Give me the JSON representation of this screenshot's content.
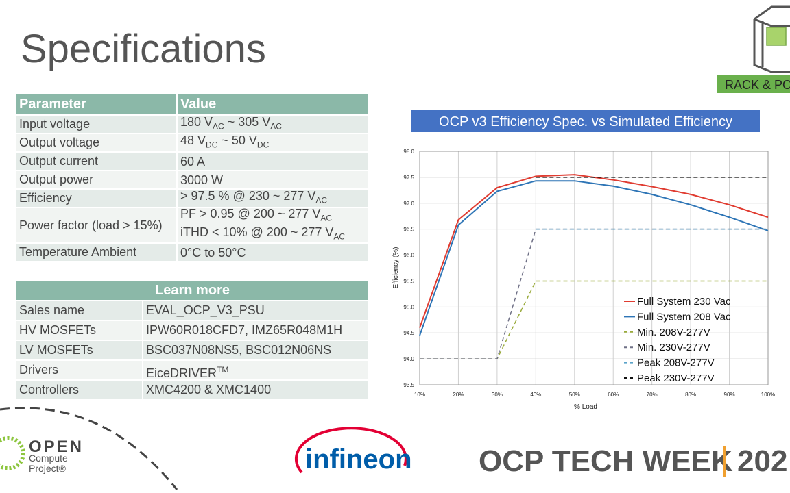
{
  "header": {
    "title": "Specifications",
    "badge": "RACK & PO"
  },
  "spec_table": {
    "columns": [
      "Parameter",
      "Value"
    ],
    "rows": [
      {
        "parameter": "Input voltage",
        "value": [
          [
            "180 V",
            {
              "sub": "AC"
            },
            " ~ 305 V",
            {
              "sub": "AC"
            }
          ]
        ]
      },
      {
        "parameter": "Output voltage",
        "value": [
          [
            "48 V",
            {
              "sub": "DC"
            },
            " ~ 50 V",
            {
              "sub": "DC"
            }
          ]
        ]
      },
      {
        "parameter": "Output current",
        "value": [
          [
            "60 A"
          ]
        ]
      },
      {
        "parameter": "Output power",
        "value": [
          [
            "3000 W"
          ]
        ]
      },
      {
        "parameter": "Efficiency",
        "value": [
          [
            "> 97.5 % @ 230 ~ 277 V",
            {
              "sub": "AC"
            }
          ]
        ]
      },
      {
        "parameter": "Power factor (load > 15%)",
        "value": [
          [
            "PF > 0.95 @ 200 ~ 277 V",
            {
              "sub": "AC"
            }
          ],
          [
            "iTHD < 10% @ 200 ~ 277 V",
            {
              "sub": "AC"
            }
          ]
        ]
      },
      {
        "parameter": "Temperature Ambient",
        "value": [
          [
            "0°C to 50°C"
          ]
        ]
      }
    ]
  },
  "learn_table": {
    "title": "Learn more",
    "rows": [
      {
        "label": "Sales name",
        "value": [
          "EVAL_OCP_V3_PSU"
        ]
      },
      {
        "label": "HV MOSFETs",
        "value": [
          "IPW60R018CFD7, IMZ65R048M1H"
        ]
      },
      {
        "label": "LV MOSFETs",
        "value": [
          "BSC037N08NS5, BSC012N06NS"
        ]
      },
      {
        "label": "Drivers",
        "value": [
          "EiceDRIVER",
          {
            "sup": "TM"
          }
        ]
      },
      {
        "label": "Controllers",
        "value": [
          "XMC4200 & XMC1400"
        ]
      }
    ]
  },
  "chart_data": {
    "type": "line",
    "title": "OCP v3 Efficiency Spec. vs Simulated Efficiency",
    "x_label": "% Load",
    "y_label": "Efficiency (%)",
    "categories": [
      "10%",
      "20%",
      "30%",
      "40%",
      "50%",
      "60%",
      "70%",
      "80%",
      "90%",
      "100%"
    ],
    "ylim": [
      93.5,
      98
    ],
    "yticks": [
      93.5,
      {
        "value": 94,
        "label": "94.0"
      },
      94.5,
      {
        "value": 95,
        "label": "95.0"
      },
      95.5,
      {
        "value": 96,
        "label": "96.0"
      },
      96.5,
      {
        "value": 97,
        "label": "97.0"
      },
      97.5,
      {
        "value": 98,
        "label": "98.0"
      }
    ],
    "grid": true,
    "series": [
      {
        "name": "Full System 230 Vac",
        "color": "#e03c31",
        "dash": false,
        "values": [
          94.6,
          96.68,
          97.3,
          97.52,
          97.55,
          97.45,
          97.32,
          97.17,
          96.97,
          96.73
        ]
      },
      {
        "name": "Full System 208 Vac",
        "color": "#2e75b6",
        "dash": false,
        "values": [
          94.45,
          96.58,
          97.23,
          97.43,
          97.43,
          97.33,
          97.17,
          96.97,
          96.73,
          96.47
        ]
      },
      {
        "name": "Min. 208V-277V",
        "color": "#9aab3c",
        "dash": true,
        "values": [
          94,
          94,
          94,
          95.5,
          95.5,
          95.5,
          95.5,
          95.5,
          95.5,
          95.5
        ]
      },
      {
        "name": "Min. 230V-277V",
        "color": "#6f7086",
        "dash": true,
        "values": [
          94,
          94,
          94,
          96.5,
          96.5,
          96.5,
          96.5,
          96.5,
          96.5,
          96.5
        ]
      },
      {
        "name": "Peak 208V-277V",
        "color": "#5ba3c9",
        "dash": true,
        "values": [
          null,
          null,
          null,
          96.5,
          96.5,
          96.5,
          96.5,
          96.5,
          96.5,
          96.5
        ]
      },
      {
        "name": "Peak 230V-277V",
        "color": "#111111",
        "dash": true,
        "values": [
          null,
          null,
          null,
          97.5,
          97.5,
          97.5,
          97.5,
          97.5,
          97.5,
          97.5
        ]
      }
    ]
  },
  "footer": {
    "ocp_logo": [
      "OPEN",
      "Compute",
      "Project®"
    ],
    "infineon": "infineon",
    "event": "OCP TECH WEEK",
    "year": "202"
  }
}
